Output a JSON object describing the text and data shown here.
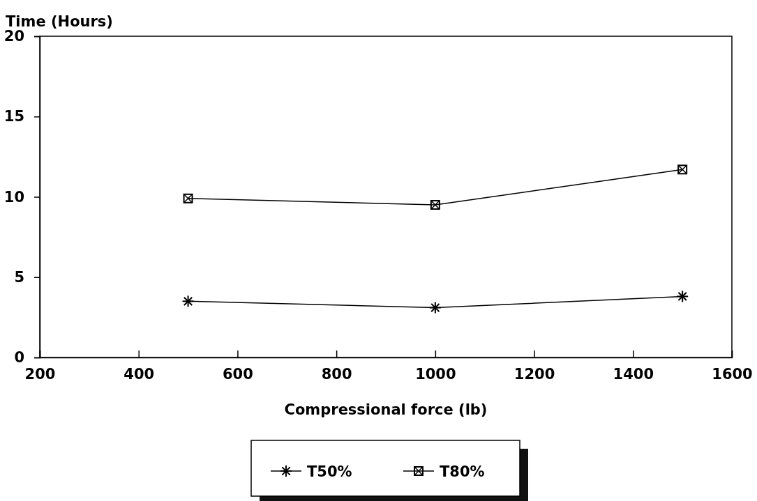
{
  "chart_data": {
    "type": "line",
    "xlabel": "Compressional force (lb)",
    "ylabel": "Time (Hours)",
    "xlim": [
      200,
      1600
    ],
    "xticks": [
      200,
      400,
      600,
      800,
      1000,
      1200,
      1400,
      1600
    ],
    "ylim": [
      0,
      20
    ],
    "yticks": [
      0,
      5,
      10,
      15,
      20
    ],
    "x": [
      500,
      1000,
      1500
    ],
    "series": [
      {
        "name": "T50%",
        "color": "#000000",
        "marker": "cross",
        "values": [
          3.5,
          3.1,
          3.8
        ]
      },
      {
        "name": "T80%",
        "color": "#000000",
        "marker": "square",
        "values": [
          9.9,
          9.5,
          11.7
        ]
      }
    ],
    "legend": "bottom",
    "grid": false,
    "line_style": "solid"
  }
}
